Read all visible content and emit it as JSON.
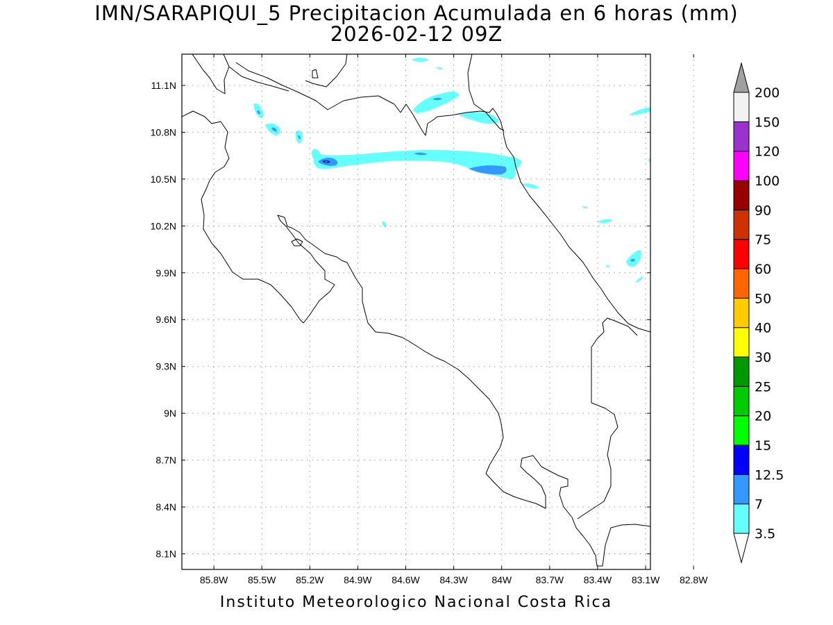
{
  "title": "IMN/SARAPIQUI_5 Precipitacion Acumulada en 6 horas (mm)",
  "subtitle": "2026-02-12 09Z",
  "footer": "Instituto Meteorologico Nacional Costa Rica",
  "map": {
    "lon_range": [
      -86.0,
      -83.07
    ],
    "lat_range": [
      8.0,
      11.3
    ],
    "x_ticks": [
      {
        "value": -85.8,
        "label": "85.8W"
      },
      {
        "value": -85.5,
        "label": "85.5W"
      },
      {
        "value": -85.2,
        "label": "85.2W"
      },
      {
        "value": -84.9,
        "label": "84.9W"
      },
      {
        "value": -84.6,
        "label": "84.6W"
      },
      {
        "value": -84.3,
        "label": "84.3W"
      },
      {
        "value": -84.0,
        "label": "84W"
      },
      {
        "value": -83.7,
        "label": "83.7W"
      },
      {
        "value": -83.4,
        "label": "83.4W"
      },
      {
        "value": -83.1,
        "label": "83.1W"
      },
      {
        "value": -82.8,
        "label": "82.8W"
      }
    ],
    "y_ticks": [
      {
        "value": 11.1,
        "label": "11.1N"
      },
      {
        "value": 10.8,
        "label": "10.8N"
      },
      {
        "value": 10.5,
        "label": "10.5N"
      },
      {
        "value": 10.2,
        "label": "10.2N"
      },
      {
        "value": 9.9,
        "label": "9.9N"
      },
      {
        "value": 9.6,
        "label": "9.6N"
      },
      {
        "value": 9.3,
        "label": "9.3N"
      },
      {
        "value": 9.0,
        "label": "9N"
      },
      {
        "value": 8.7,
        "label": "8.7N"
      },
      {
        "value": 8.4,
        "label": "8.4N"
      },
      {
        "value": 8.1,
        "label": "8.1N"
      }
    ],
    "grid": "dotted"
  },
  "colorbar": {
    "levels": [
      "3.5",
      "7",
      "12.5",
      "15",
      "20",
      "25",
      "30",
      "40",
      "50",
      "60",
      "75",
      "90",
      "100",
      "120",
      "150",
      "200"
    ],
    "colors": [
      "#66ffff",
      "#3399ff",
      "#0000ff",
      "#00ff00",
      "#00cc00",
      "#009900",
      "#ffff00",
      "#ffcc00",
      "#ff6600",
      "#ff0000",
      "#cc3300",
      "#990000",
      "#ff00ff",
      "#9933cc",
      "#f2f2f2"
    ],
    "upper_arrow_color": "#a0a0a0",
    "lower_arrow_color": "#ffffff"
  },
  "precip_colors": {
    "light": "#66ffff",
    "moderate": "#3399ff",
    "heavy": "#0000ff",
    "peak": "#00ff00"
  }
}
